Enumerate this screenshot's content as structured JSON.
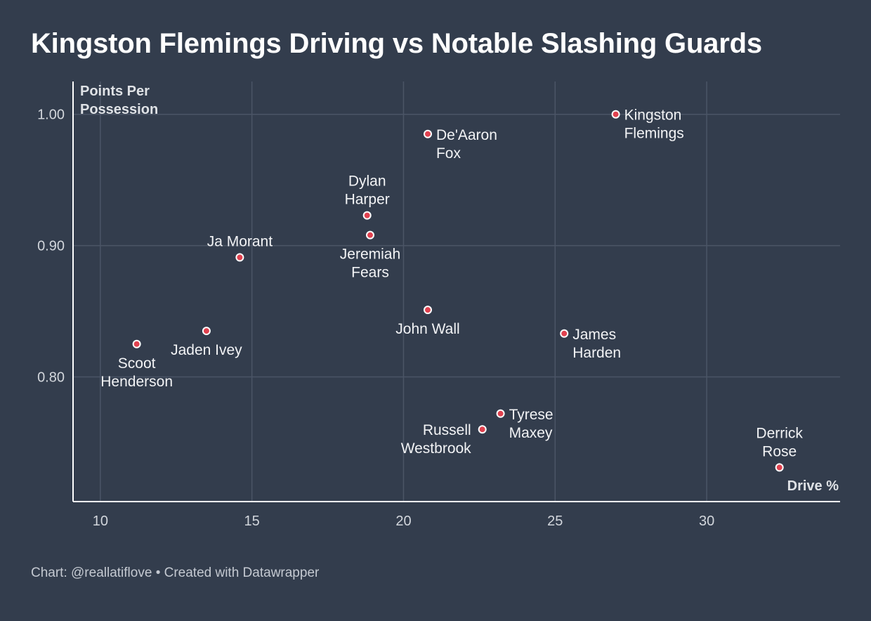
{
  "header": {
    "title": "Kingston Flemings Driving vs Notable Slashing Guards"
  },
  "footer": {
    "credit": "Chart: @reallatiflove • Created with Datawrapper"
  },
  "colors": {
    "background": "#333d4d",
    "gridline": "#4b5566",
    "axis": "#ffffff",
    "point_fill": "#e0414f",
    "point_stroke": "#ffffff"
  },
  "chart_data": {
    "type": "scatter",
    "title": "Kingston Flemings Driving vs Notable Slashing Guards",
    "xlabel": "Drive %",
    "ylabel_lines": [
      "Points Per",
      "Possession"
    ],
    "xlim": [
      9.1,
      34.4
    ],
    "ylim": [
      0.705,
      1.025
    ],
    "x_ticks": [
      10,
      15,
      20,
      25,
      30
    ],
    "y_ticks": [
      0.8,
      0.9,
      1.0
    ],
    "y_tick_labels": [
      "0.80",
      "0.90",
      "1.00"
    ],
    "grid": true,
    "points": [
      {
        "name": "Kingston Flemings",
        "label_lines": [
          "Kingston",
          "Flemings"
        ],
        "x": 27.0,
        "y": 1.0,
        "label_pos": "right"
      },
      {
        "name": "De'Aaron Fox",
        "label_lines": [
          "De'Aaron",
          "Fox"
        ],
        "x": 20.8,
        "y": 0.985,
        "label_pos": "right"
      },
      {
        "name": "Dylan Harper",
        "label_lines": [
          "Dylan",
          "Harper"
        ],
        "x": 18.8,
        "y": 0.923,
        "label_pos": "top"
      },
      {
        "name": "Jeremiah Fears",
        "label_lines": [
          "Jeremiah",
          "Fears"
        ],
        "x": 18.9,
        "y": 0.908,
        "label_pos": "bottom"
      },
      {
        "name": "Ja Morant",
        "label_lines": [
          "Ja Morant"
        ],
        "x": 14.6,
        "y": 0.891,
        "label_pos": "top"
      },
      {
        "name": "John Wall",
        "label_lines": [
          "John Wall"
        ],
        "x": 20.8,
        "y": 0.851,
        "label_pos": "bottom"
      },
      {
        "name": "Jaden Ivey",
        "label_lines": [
          "Jaden Ivey"
        ],
        "x": 13.5,
        "y": 0.835,
        "label_pos": "bottom"
      },
      {
        "name": "James Harden",
        "label_lines": [
          "James",
          "Harden"
        ],
        "x": 25.3,
        "y": 0.833,
        "label_pos": "right"
      },
      {
        "name": "Scoot Henderson",
        "label_lines": [
          "Scoot",
          "Henderson"
        ],
        "x": 11.2,
        "y": 0.825,
        "label_pos": "bottom"
      },
      {
        "name": "Tyrese Maxey",
        "label_lines": [
          "Tyrese",
          "Maxey"
        ],
        "x": 23.2,
        "y": 0.772,
        "label_pos": "right"
      },
      {
        "name": "Russell Westbrook",
        "label_lines": [
          "Russell",
          "Westbrook"
        ],
        "x": 22.6,
        "y": 0.76,
        "label_pos": "left"
      },
      {
        "name": "Derrick Rose",
        "label_lines": [
          "Derrick",
          "Rose"
        ],
        "x": 32.4,
        "y": 0.731,
        "label_pos": "top"
      }
    ]
  }
}
